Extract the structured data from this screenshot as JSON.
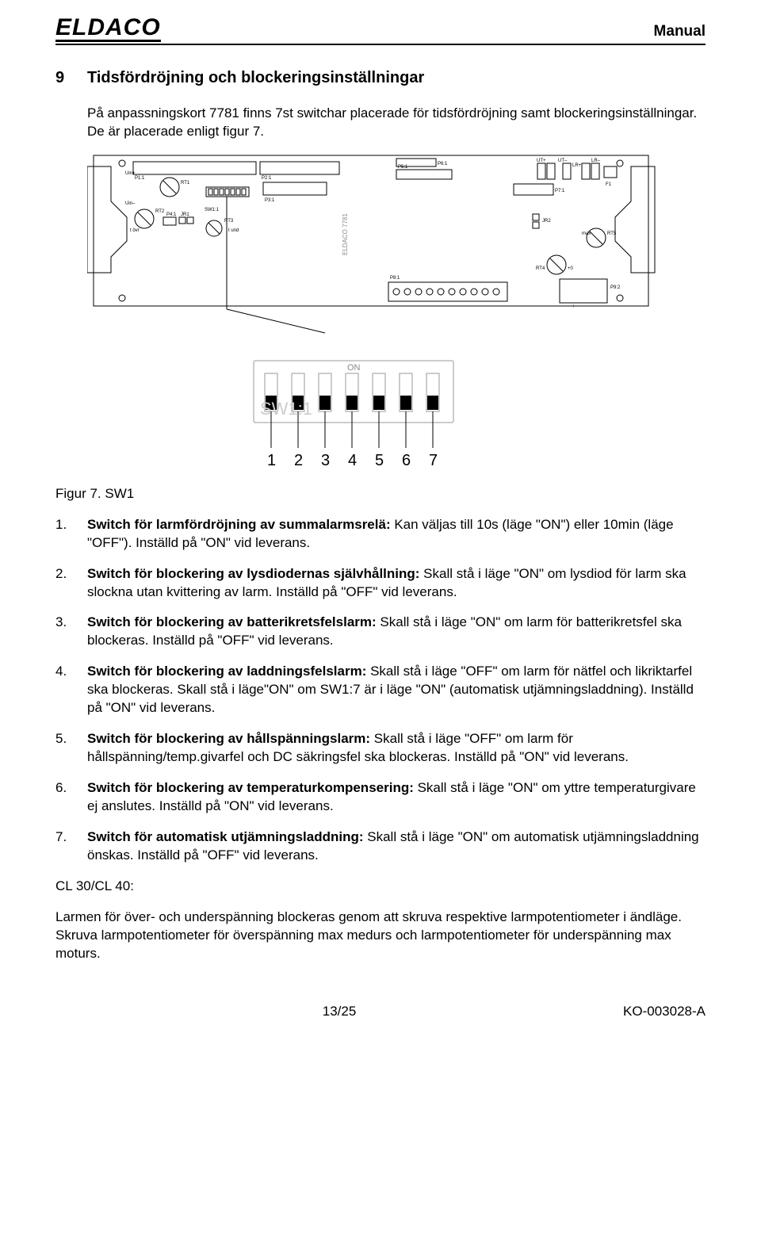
{
  "header": {
    "logo": "ELDACO",
    "title": "Manual"
  },
  "section": {
    "number": "9",
    "title": "Tidsfördröjning och blockeringsinställningar"
  },
  "intro": "På anpassningskort 7781 finns 7st switchar placerade för tidsfördröjning samt blockeringsinställningar. De är placerade enligt figur 7.",
  "board": {
    "labels": {
      "p1": "P1:1",
      "p2": "P2:1",
      "p3": "P3:1",
      "p5": "P5:1",
      "p6": "P6:1",
      "p7": "P7:1",
      "p8": "P8:1",
      "p9": "P9:2",
      "p4": "P4:1",
      "rt1": "RT1",
      "rt2": "RT2",
      "rt3": "RT3",
      "rt4": "RT4",
      "rt5": "RT5",
      "sw1": "SW1:1",
      "jr1": "JR1",
      "jr2": "JR2",
      "ut1": "UT+",
      "ut2": "UT–",
      "lr1": "LR+",
      "lr2": "LR–",
      "brand": "ELDACO 7781",
      "uin1": "Uin+",
      "uin2": "Uin–",
      "tund": "t und",
      "tovr": "t övr",
      "f1": "F1",
      "max": "max",
      "a0": "+0",
      "plus": "+",
      "minus": "–"
    }
  },
  "dip": {
    "on_label": "ON",
    "sw_label": "SW1:1",
    "numbers": [
      "1",
      "2",
      "3",
      "4",
      "5",
      "6",
      "7"
    ]
  },
  "figcaption": "Figur 7. SW1",
  "items": [
    {
      "n": "1.",
      "bold": "Switch för larmfördröjning av summalarmsrelä:",
      "rest": " Kan väljas till 10s (läge \"ON\") eller 10min (läge \"OFF\"). Inställd på \"ON\" vid leverans."
    },
    {
      "n": "2.",
      "bold": "Switch för blockering av lysdiodernas självhållning:",
      "rest": " Skall stå i läge \"ON\" om lysdiod för larm ska slockna utan kvittering av larm. Inställd på \"OFF\" vid leverans."
    },
    {
      "n": "3.",
      "bold": "Switch för blockering av batterikretsfelslarm:",
      "rest": " Skall stå i läge \"ON\" om larm för batterikretsfel ska blockeras. Inställd på \"OFF\" vid leverans."
    },
    {
      "n": "4.",
      "bold": "Switch för blockering av laddningsfelslarm:",
      "rest": " Skall stå i läge \"OFF\" om larm för nätfel och likriktarfel ska blockeras. Skall stå i läge\"ON\" om SW1:7 är i läge \"ON\" (automatisk utjämningsladdning). Inställd på \"ON\" vid leverans."
    },
    {
      "n": "5.",
      "bold": "Switch för blockering av hållspänningslarm:",
      "rest": " Skall stå i läge \"OFF\" om larm för hållspänning/temp.givarfel och DC säkringsfel ska blockeras. Inställd på \"ON\" vid leverans."
    },
    {
      "n": "6.",
      "bold": "Switch för blockering av temperaturkompensering:",
      "rest": " Skall stå i läge \"ON\" om yttre temperaturgivare ej anslutes. Inställd på \"ON\" vid leverans."
    },
    {
      "n": "7.",
      "bold": "Switch för automatisk utjämningsladdning:",
      "rest": " Skall stå i läge \"ON\" om automatisk utjämningsladdning önskas. Inställd på \"OFF\" vid leverans."
    }
  ],
  "cl_heading": "CL 30/CL 40:",
  "cl_body": "Larmen för över- och underspänning blockeras genom att skruva respektive larmpotentiometer i ändläge. Skruva larmpotentiometer för överspänning max medurs och larmpotentiometer för underspänning max moturs.",
  "footer": {
    "page": "13/25",
    "doc": "KO-003028-A"
  }
}
